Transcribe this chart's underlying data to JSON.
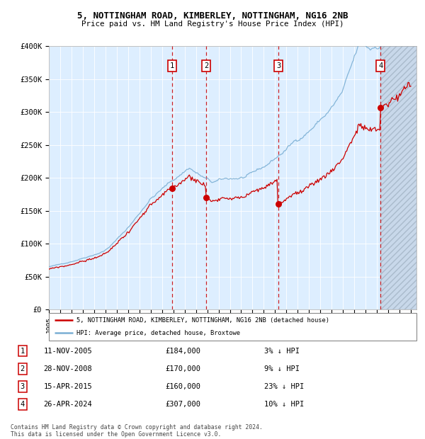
{
  "title1": "5, NOTTINGHAM ROAD, KIMBERLEY, NOTTINGHAM, NG16 2NB",
  "title2": "Price paid vs. HM Land Registry's House Price Index (HPI)",
  "legend_line1": "5, NOTTINGHAM ROAD, KIMBERLEY, NOTTINGHAM, NG16 2NB (detached house)",
  "legend_line2": "HPI: Average price, detached house, Broxtowe",
  "footer1": "Contains HM Land Registry data © Crown copyright and database right 2024.",
  "footer2": "This data is licensed under the Open Government Licence v3.0.",
  "hpi_color": "#7bafd4",
  "price_color": "#cc0000",
  "background_chart": "#ddeeff",
  "xmin": 1995.0,
  "xmax": 2027.5,
  "ymin": 0,
  "ymax": 400000,
  "yticks": [
    0,
    50000,
    100000,
    150000,
    200000,
    250000,
    300000,
    350000,
    400000
  ],
  "ytick_labels": [
    "£0",
    "£50K",
    "£100K",
    "£150K",
    "£200K",
    "£250K",
    "£300K",
    "£350K",
    "£400K"
  ],
  "sales": [
    {
      "num": 1,
      "date": "11-NOV-2005",
      "year": 2005.87,
      "price": 184000,
      "pct": "3%",
      "direction": "↓"
    },
    {
      "num": 2,
      "date": "28-NOV-2008",
      "year": 2008.92,
      "price": 170000,
      "pct": "9%",
      "direction": "↓"
    },
    {
      "num": 3,
      "date": "15-APR-2015",
      "year": 2015.29,
      "price": 160000,
      "pct": "23%",
      "direction": "↓"
    },
    {
      "num": 4,
      "date": "26-APR-2024",
      "year": 2024.32,
      "price": 307000,
      "pct": "10%",
      "direction": "↓"
    }
  ],
  "table_rows": [
    [
      "1",
      "11-NOV-2005",
      "£184,000",
      "3% ↓ HPI"
    ],
    [
      "2",
      "28-NOV-2008",
      "£170,000",
      "9% ↓ HPI"
    ],
    [
      "3",
      "15-APR-2015",
      "£160,000",
      "23% ↓ HPI"
    ],
    [
      "4",
      "26-APR-2024",
      "£307,000",
      "10% ↓ HPI"
    ]
  ]
}
